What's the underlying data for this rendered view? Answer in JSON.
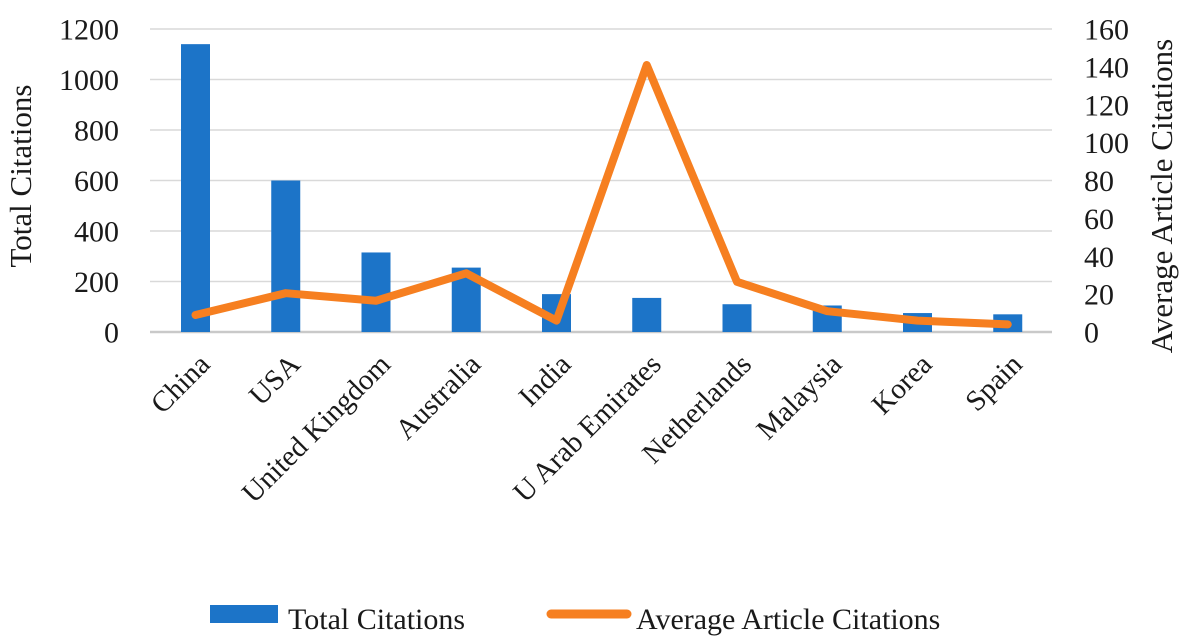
{
  "chart_data": {
    "type": "combo",
    "categories": [
      "China",
      "USA",
      "United Kingdom",
      "Australia",
      "India",
      "U Arab Emirates",
      "Netherlands",
      "Malaysia",
      "Korea",
      "Spain"
    ],
    "series": [
      {
        "name": "Total Citations",
        "type": "bar",
        "axis": "left",
        "color": "#1c74c8",
        "values": [
          1140,
          600,
          315,
          255,
          150,
          135,
          110,
          105,
          75,
          70
        ]
      },
      {
        "name": "Average Article Citations",
        "type": "line",
        "axis": "right",
        "color": "#f67f20",
        "values": [
          9,
          20.5,
          16.5,
          31,
          6,
          141,
          26.5,
          11,
          6,
          4
        ]
      }
    ],
    "left_axis": {
      "label": "Total Citations",
      "min": 0,
      "max": 1200,
      "step": 200,
      "ticks": [
        0,
        200,
        400,
        600,
        800,
        1000,
        1200
      ]
    },
    "right_axis": {
      "label": "Average Article Citations",
      "min": 0,
      "max": 160,
      "step": 20,
      "ticks": [
        0,
        20,
        40,
        60,
        80,
        100,
        120,
        140,
        160
      ]
    },
    "grid": true,
    "legend_position": "bottom",
    "styles": {
      "gridline_color": "#d9d9d9",
      "baseline_color": "#c9c9c9",
      "text_color": "#1a1a1a",
      "background": "#ffffff"
    }
  }
}
